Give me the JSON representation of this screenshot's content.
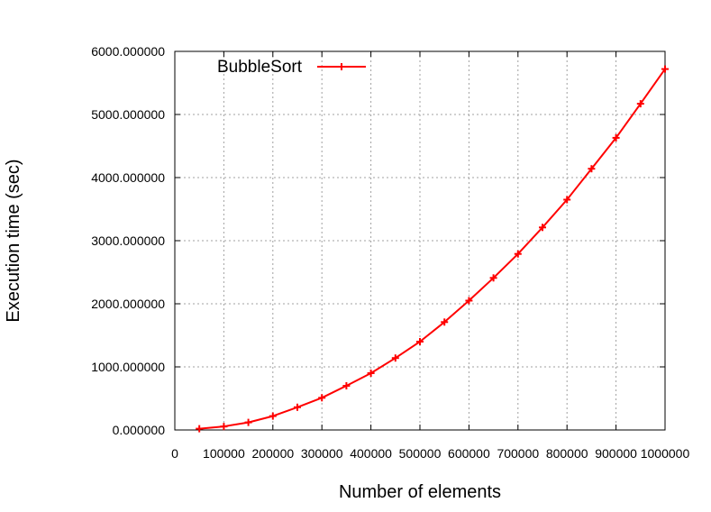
{
  "chart_data": {
    "type": "line",
    "title": "",
    "xlabel": "Number of elements",
    "ylabel": "Execution time (sec)",
    "xlim": [
      0,
      1000000
    ],
    "ylim": [
      0,
      6000
    ],
    "x_ticks": [
      0,
      100000,
      200000,
      300000,
      400000,
      500000,
      600000,
      700000,
      800000,
      900000,
      1000000
    ],
    "x_tick_labels": [
      "0",
      "100000",
      "200000",
      "300000",
      "400000",
      "500000",
      "600000",
      "700000",
      "800000",
      "900000",
      "1000000"
    ],
    "y_ticks": [
      0,
      1000,
      2000,
      3000,
      4000,
      5000,
      6000
    ],
    "y_tick_labels": [
      "0.000000",
      "1000.000000",
      "2000.000000",
      "3000.000000",
      "4000.000000",
      "5000.000000",
      "6000.000000"
    ],
    "grid": true,
    "legend_position": "top-left",
    "series": [
      {
        "name": "BubbleSort",
        "color": "#ff0000",
        "marker": "plus",
        "x": [
          50000,
          100000,
          150000,
          200000,
          250000,
          300000,
          350000,
          400000,
          450000,
          500000,
          550000,
          600000,
          650000,
          700000,
          750000,
          800000,
          850000,
          900000,
          950000,
          1000000
        ],
        "y": [
          20,
          55,
          120,
          220,
          360,
          510,
          700,
          900,
          1140,
          1400,
          1710,
          2050,
          2410,
          2790,
          3210,
          3650,
          4140,
          4630,
          5170,
          5720
        ]
      }
    ]
  }
}
